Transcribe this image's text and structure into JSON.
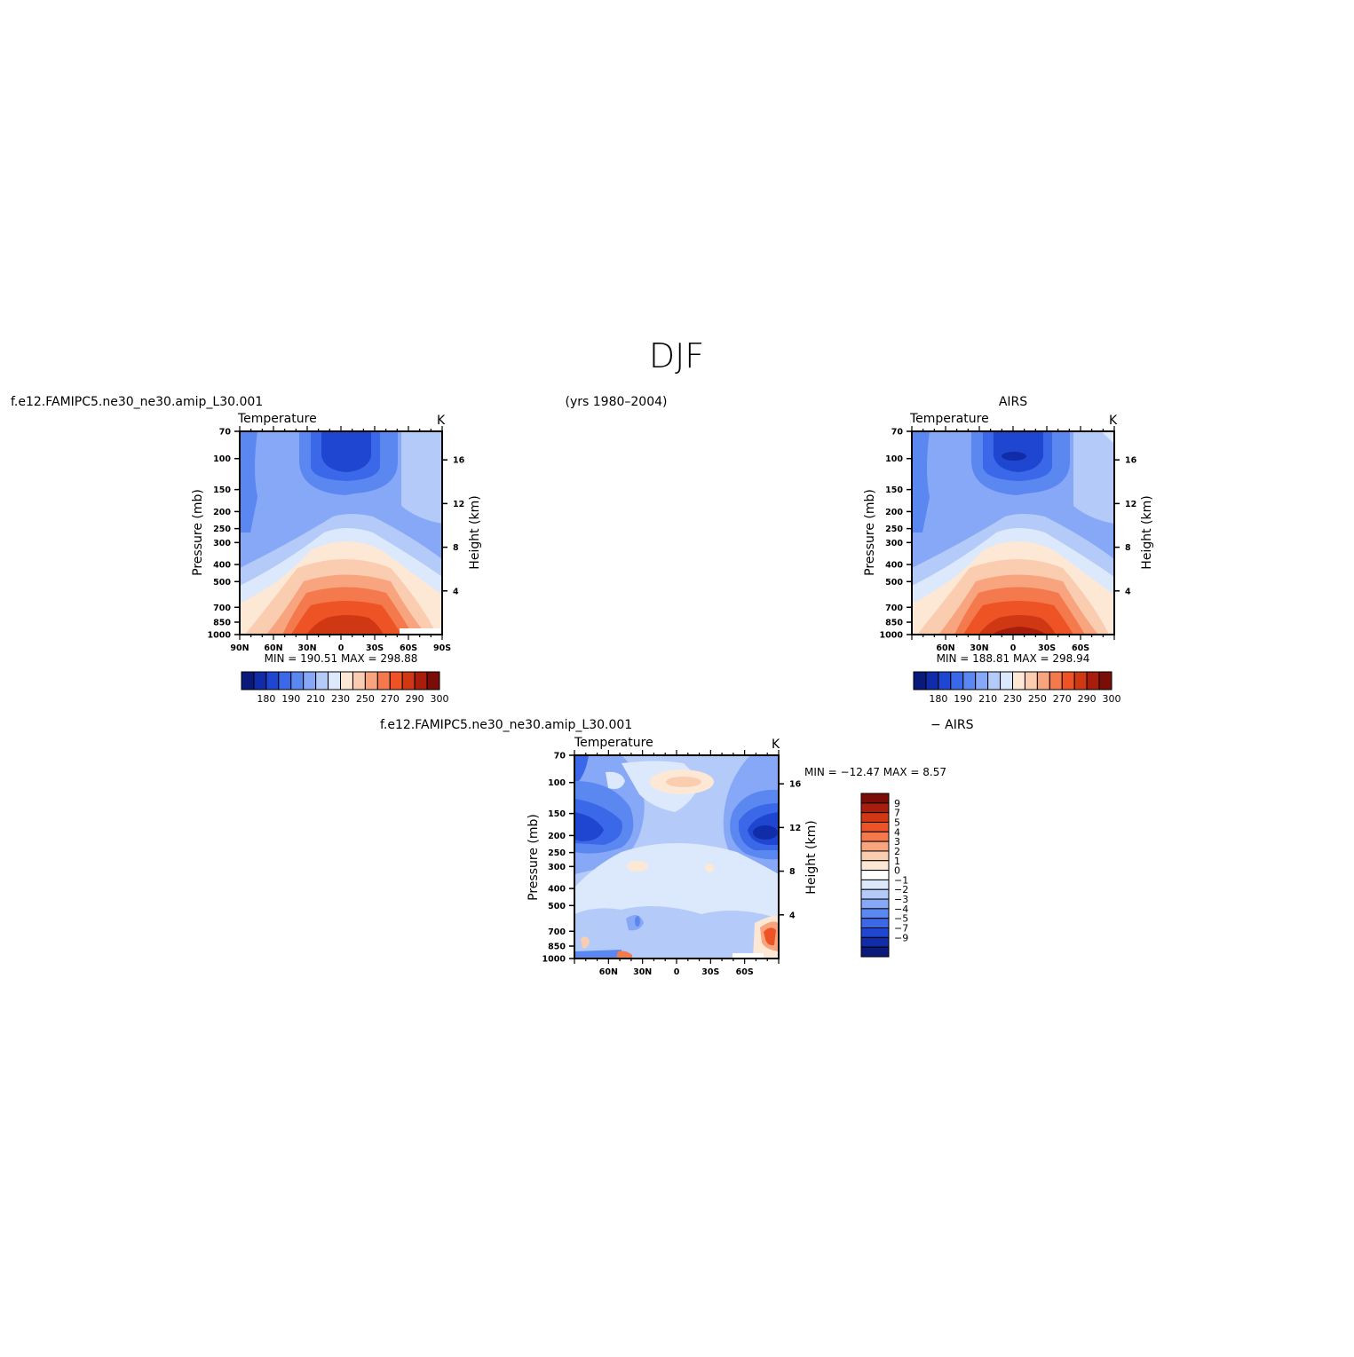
{
  "page": {
    "title": "DJF",
    "period": "(yrs 1980–2004)",
    "model_name": "f.e12.FAMIPC5.ne30_ne30.amip_L30.001",
    "obs_name": "AIRS",
    "diff_name_left": "f.e12.FAMIPC5.ne30_ne30.amip_L30.001",
    "diff_name_right": "− AIRS"
  },
  "chart_data": [
    {
      "id": "model",
      "type": "heatmap",
      "title": "Temperature",
      "units": "K",
      "ylabel": "Pressure (mb)",
      "y2label": "Height (km)",
      "y_ticks": [
        70,
        100,
        150,
        200,
        250,
        300,
        400,
        500,
        700,
        850,
        1000
      ],
      "y2_ticks": [
        4,
        8,
        12,
        16
      ],
      "x_ticks": [
        "90N",
        "60N",
        "30N",
        "0",
        "30S",
        "60S",
        "90S"
      ],
      "stats": "MIN = 190.51   MAX = 298.88",
      "min": 190.51,
      "max": 298.88,
      "colorbar_labels": [
        "180",
        "190",
        "210",
        "230",
        "250",
        "270",
        "290",
        "300"
      ]
    },
    {
      "id": "obs",
      "type": "heatmap",
      "title": "Temperature",
      "units": "K",
      "ylabel": "Pressure (mb)",
      "y2label": "Height (km)",
      "y_ticks": [
        70,
        100,
        150,
        200,
        250,
        300,
        400,
        500,
        700,
        850,
        1000
      ],
      "y2_ticks": [
        4,
        8,
        12,
        16
      ],
      "x_ticks": [
        "60N",
        "30N",
        "0",
        "30S",
        "60S"
      ],
      "stats": "MIN = 188.81   MAX = 298.94",
      "min": 188.81,
      "max": 298.94,
      "colorbar_labels": [
        "180",
        "190",
        "210",
        "230",
        "250",
        "270",
        "290",
        "300"
      ]
    },
    {
      "id": "diff",
      "type": "heatmap",
      "title": "Temperature",
      "units": "K",
      "ylabel": "Pressure (mb)",
      "y2label": "Height (km)",
      "y_ticks": [
        70,
        100,
        150,
        200,
        250,
        300,
        400,
        500,
        700,
        850,
        1000
      ],
      "y2_ticks": [
        4,
        8,
        12,
        16
      ],
      "x_ticks": [
        "60N",
        "30N",
        "0",
        "30S",
        "60S"
      ],
      "stats": "MIN = −12.47   MAX =    8.57",
      "min": -12.47,
      "max": 8.57,
      "colorbar_labels": [
        "9",
        "7",
        "5",
        "4",
        "3",
        "2",
        "1",
        "0",
        "−1",
        "−2",
        "−3",
        "−4",
        "−5",
        "−7",
        "−9"
      ]
    }
  ],
  "colors": {
    "temp_palette": [
      "#0a1a7a",
      "#102ca8",
      "#1f46d0",
      "#3a68e8",
      "#5b87f0",
      "#86a8f6",
      "#b4caf9",
      "#dce8fb",
      "#fde8d6",
      "#fbcdb0",
      "#f8a47f",
      "#f47a4e",
      "#ee5326",
      "#d03814",
      "#a81d0c",
      "#7a0e06"
    ],
    "diff_palette": [
      "#7a0e06",
      "#a81d0c",
      "#d03814",
      "#ee5326",
      "#f47a4e",
      "#f8a47f",
      "#fbcdb0",
      "#fde8d6",
      "#ffffff",
      "#dce8fb",
      "#b4caf9",
      "#86a8f6",
      "#5b87f0",
      "#3a68e8",
      "#1f46d0",
      "#102ca8",
      "#0a1a7a"
    ]
  }
}
